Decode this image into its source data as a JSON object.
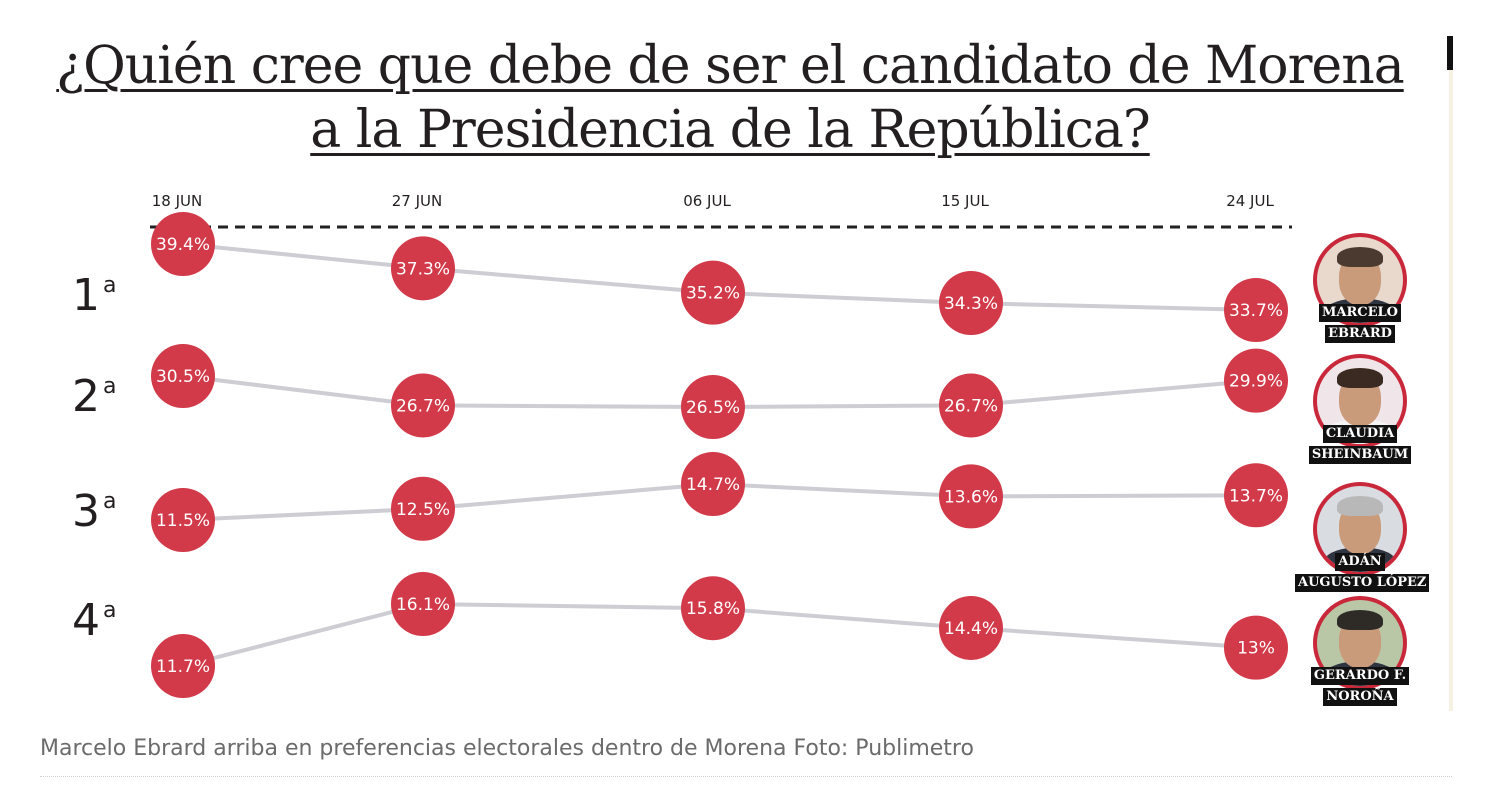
{
  "title_lines": [
    "¿Quién cree que debe de ser el candidato de Morena",
    "a la Presidencia de la República?"
  ],
  "caption": "Marcelo Ebrard arriba en preferencias electorales dentro de Morena Foto: Publimetro",
  "colors": {
    "marker": "#d23a4a",
    "line": "#cdcdd3",
    "text": "#231f20",
    "badge_bg": "#111111"
  },
  "chart_data": {
    "type": "line",
    "title": "¿Quién cree que debe de ser el candidato de Morena a la Presidencia de la República?",
    "categories": [
      "18 JUN",
      "27 JUN",
      "06 JUL",
      "15 JUL",
      "24 JUL"
    ],
    "rank_labels": [
      {
        "num": "1",
        "sup": "a"
      },
      {
        "num": "2",
        "sup": "a"
      },
      {
        "num": "3",
        "sup": "a"
      },
      {
        "num": "4",
        "sup": "a"
      }
    ],
    "series": [
      {
        "name": "Marcelo Ebrard",
        "rank": 1,
        "values": [
          39.4,
          37.3,
          35.2,
          34.3,
          33.7
        ],
        "labels": [
          "39.4%",
          "37.3%",
          "35.2%",
          "34.3%",
          "33.7%"
        ]
      },
      {
        "name": "Claudia Sheinbaum",
        "rank": 2,
        "values": [
          30.5,
          26.7,
          26.5,
          26.7,
          29.9
        ],
        "labels": [
          "30.5%",
          "26.7%",
          "26.5%",
          "26.7%",
          "29.9%"
        ]
      },
      {
        "name": "Adán Augusto López",
        "rank": 3,
        "values": [
          11.5,
          12.5,
          14.7,
          13.6,
          13.7
        ],
        "labels": [
          "11.5%",
          "12.5%",
          "14.7%",
          "13.6%",
          "13.7%"
        ]
      },
      {
        "name": "Gerardo F. Noroña",
        "rank": 4,
        "values": [
          11.7,
          16.1,
          15.8,
          14.4,
          13.0
        ],
        "labels": [
          "11.7%",
          "16.1%",
          "15.8%",
          "14.4%",
          "13%"
        ]
      }
    ]
  },
  "candidates": [
    {
      "line1": "MARCELO",
      "line2": "EBRARD"
    },
    {
      "line1": "CLAUDIA",
      "line2": "SHEINBAUM"
    },
    {
      "line1": "ADÁN",
      "line2": "AUGUSTO LÓPEZ"
    },
    {
      "line1": "GERARDO F.",
      "line2": "NOROÑA"
    }
  ]
}
